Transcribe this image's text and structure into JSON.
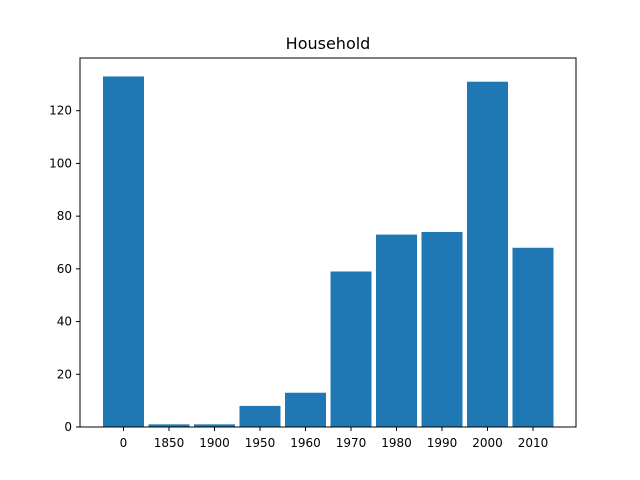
{
  "chart_data": {
    "type": "bar",
    "title": "Household",
    "xlabel": "",
    "ylabel": "",
    "categories": [
      "0",
      "1850",
      "1900",
      "1950",
      "1960",
      "1970",
      "1980",
      "1990",
      "2000",
      "2010"
    ],
    "values": [
      133,
      1,
      1,
      8,
      13,
      59,
      73,
      74,
      131,
      68
    ],
    "ylim": [
      0,
      140
    ],
    "yticks": [
      0,
      20,
      40,
      60,
      80,
      100,
      120
    ],
    "bar_color": "#1f77b4",
    "grid": false,
    "legend": "none"
  }
}
